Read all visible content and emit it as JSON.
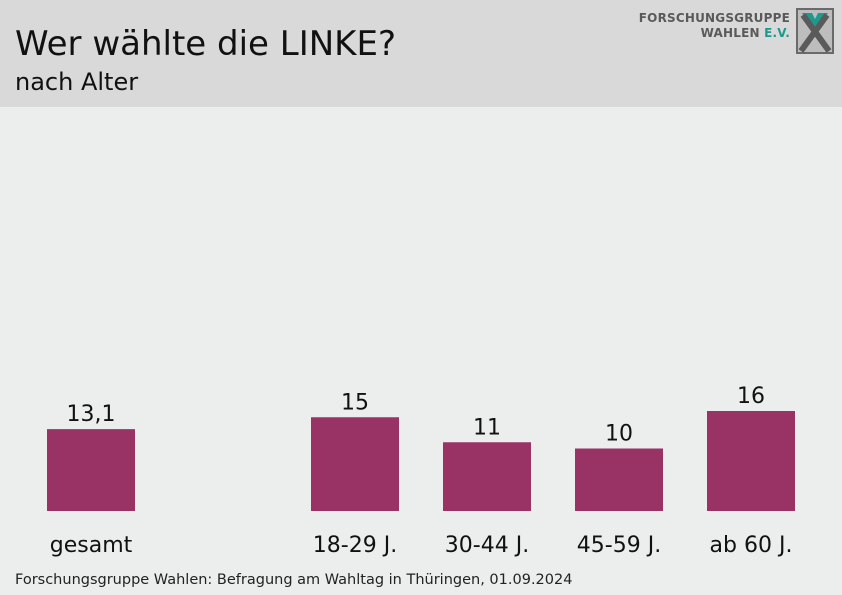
{
  "header": {
    "title": "Wer wählte die LINKE?",
    "subtitle": "nach Alter"
  },
  "logo": {
    "line1": "FORSCHUNGSGRUPPE",
    "line2_main": "WAHLEN",
    "line2_accent": "E.V.",
    "icon": "fgw-x-logo-icon"
  },
  "colors": {
    "bar": "#993366",
    "header_bg": "#d9d9d9",
    "background": "#ebeeed",
    "logo_accent": "#1c9a8e"
  },
  "chart_data": {
    "type": "bar",
    "title": "Wer wählte die LINKE?",
    "subtitle": "nach Alter",
    "categories": [
      "gesamt",
      "18-29 J.",
      "30-44 J.",
      "45-59 J.",
      "ab 60 J."
    ],
    "values": [
      13.1,
      15,
      11,
      10,
      16
    ],
    "value_labels": [
      "13,1",
      "15",
      "11",
      "10",
      "16"
    ],
    "xlabel": "",
    "ylabel": "",
    "grid": false,
    "legend": "none"
  },
  "footer": {
    "source": "Forschungsgruppe Wahlen: Befragung am Wahltag in Thüringen, 01.09.2024"
  }
}
